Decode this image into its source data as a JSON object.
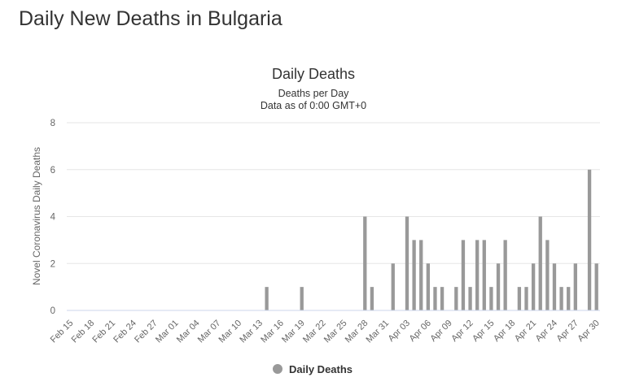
{
  "page": {
    "title": "Daily New Deaths in Bulgaria"
  },
  "chart_data": {
    "type": "bar",
    "title": "Daily Deaths",
    "subtitle_line1": "Deaths per Day",
    "subtitle_line2": "Data as of 0:00 GMT+0",
    "xlabel": "",
    "ylabel": "Novel Coronavirus Daily Deaths",
    "ylim": [
      0,
      8
    ],
    "yticks": [
      0,
      2,
      4,
      6,
      8
    ],
    "grid": true,
    "legend_position": "bottom",
    "colors": {
      "bar": "#999999",
      "grid": "#e6e6e6",
      "baseline": "#ccd6eb",
      "text": "#333333",
      "label": "#666666"
    },
    "x_tick_labels": [
      "Feb 15",
      "Feb 18",
      "Feb 21",
      "Feb 24",
      "Feb 27",
      "Mar 01",
      "Mar 04",
      "Mar 07",
      "Mar 10",
      "Mar 13",
      "Mar 16",
      "Mar 19",
      "Mar 22",
      "Mar 25",
      "Mar 28",
      "Mar 31",
      "Apr 03",
      "Apr 06",
      "Apr 09",
      "Apr 12",
      "Apr 15",
      "Apr 18",
      "Apr 21",
      "Apr 24",
      "Apr 27",
      "Apr 30"
    ],
    "categories": [
      "Feb 15",
      "Feb 16",
      "Feb 17",
      "Feb 18",
      "Feb 19",
      "Feb 20",
      "Feb 21",
      "Feb 22",
      "Feb 23",
      "Feb 24",
      "Feb 25",
      "Feb 26",
      "Feb 27",
      "Feb 28",
      "Feb 29",
      "Mar 01",
      "Mar 02",
      "Mar 03",
      "Mar 04",
      "Mar 05",
      "Mar 06",
      "Mar 07",
      "Mar 08",
      "Mar 09",
      "Mar 10",
      "Mar 11",
      "Mar 12",
      "Mar 13",
      "Mar 14",
      "Mar 15",
      "Mar 16",
      "Mar 17",
      "Mar 18",
      "Mar 19",
      "Mar 20",
      "Mar 21",
      "Mar 22",
      "Mar 23",
      "Mar 24",
      "Mar 25",
      "Mar 26",
      "Mar 27",
      "Mar 28",
      "Mar 29",
      "Mar 30",
      "Mar 31",
      "Apr 01",
      "Apr 02",
      "Apr 03",
      "Apr 04",
      "Apr 05",
      "Apr 06",
      "Apr 07",
      "Apr 08",
      "Apr 09",
      "Apr 10",
      "Apr 11",
      "Apr 12",
      "Apr 13",
      "Apr 14",
      "Apr 15",
      "Apr 16",
      "Apr 17",
      "Apr 18",
      "Apr 19",
      "Apr 20",
      "Apr 21",
      "Apr 22",
      "Apr 23",
      "Apr 24",
      "Apr 25",
      "Apr 26",
      "Apr 27",
      "Apr 28",
      "Apr 29",
      "Apr 30"
    ],
    "series": [
      {
        "name": "Daily Deaths",
        "values": [
          0,
          0,
          0,
          0,
          0,
          0,
          0,
          0,
          0,
          0,
          0,
          0,
          0,
          0,
          0,
          0,
          0,
          0,
          0,
          0,
          0,
          0,
          0,
          0,
          0,
          0,
          0,
          0,
          1,
          0,
          0,
          0,
          0,
          1,
          0,
          0,
          0,
          0,
          0,
          0,
          0,
          0,
          4,
          1,
          0,
          0,
          2,
          0,
          4,
          3,
          3,
          2,
          1,
          1,
          0,
          1,
          3,
          1,
          3,
          3,
          1,
          2,
          3,
          0,
          1,
          1,
          2,
          4,
          3,
          2,
          1,
          1,
          2,
          0,
          6,
          2
        ]
      }
    ]
  }
}
